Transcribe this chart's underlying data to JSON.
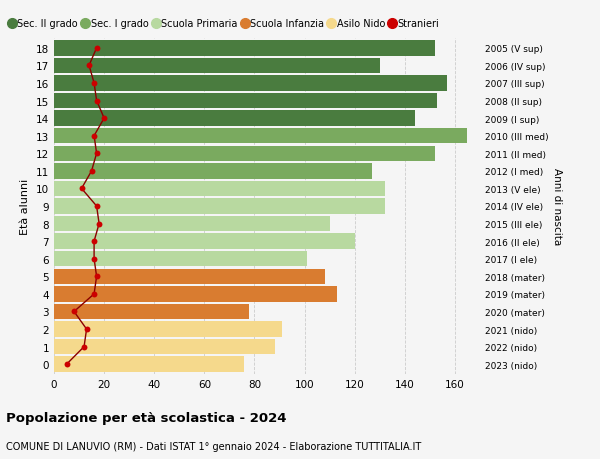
{
  "ages": [
    18,
    17,
    16,
    15,
    14,
    13,
    12,
    11,
    10,
    9,
    8,
    7,
    6,
    5,
    4,
    3,
    2,
    1,
    0
  ],
  "years_labels": [
    "2005 (V sup)",
    "2006 (IV sup)",
    "2007 (III sup)",
    "2008 (II sup)",
    "2009 (I sup)",
    "2010 (III med)",
    "2011 (II med)",
    "2012 (I med)",
    "2013 (V ele)",
    "2014 (IV ele)",
    "2015 (III ele)",
    "2016 (II ele)",
    "2017 (I ele)",
    "2018 (mater)",
    "2019 (mater)",
    "2020 (mater)",
    "2021 (nido)",
    "2022 (nido)",
    "2023 (nido)"
  ],
  "bar_values": [
    152,
    130,
    157,
    153,
    144,
    165,
    152,
    127,
    132,
    132,
    110,
    120,
    101,
    108,
    113,
    78,
    91,
    88,
    76
  ],
  "stranieri_values": [
    17,
    14,
    16,
    17,
    20,
    16,
    17,
    15,
    11,
    17,
    18,
    16,
    16,
    17,
    16,
    8,
    13,
    12,
    5
  ],
  "bar_colors": [
    "#4a7c3f",
    "#4a7c3f",
    "#4a7c3f",
    "#4a7c3f",
    "#4a7c3f",
    "#7aaa5f",
    "#7aaa5f",
    "#7aaa5f",
    "#b8d9a0",
    "#b8d9a0",
    "#b8d9a0",
    "#b8d9a0",
    "#b8d9a0",
    "#d97c30",
    "#d97c30",
    "#d97c30",
    "#f5d98c",
    "#f5d98c",
    "#f5d98c"
  ],
  "legend_labels": [
    "Sec. II grado",
    "Sec. I grado",
    "Scuola Primaria",
    "Scuola Infanzia",
    "Asilo Nido",
    "Stranieri"
  ],
  "legend_colors": [
    "#4a7c3f",
    "#7aaa5f",
    "#b8d9a0",
    "#d97c30",
    "#f5d98c",
    "#cc0000"
  ],
  "ylabel_left": "Età alunni",
  "ylabel_right": "Anni di nascita",
  "title": "Popolazione per età scolastica - 2024",
  "subtitle": "COMUNE DI LANUVIO (RM) - Dati ISTAT 1° gennaio 2024 - Elaborazione TUTTITALIA.IT",
  "xlim": [
    0,
    170
  ],
  "xticks": [
    0,
    20,
    40,
    60,
    80,
    100,
    120,
    140,
    160
  ],
  "bg_color": "#f5f5f5",
  "bar_height": 0.88,
  "stranieri_line_color": "#8b0000",
  "stranieri_dot_color": "#cc0000"
}
